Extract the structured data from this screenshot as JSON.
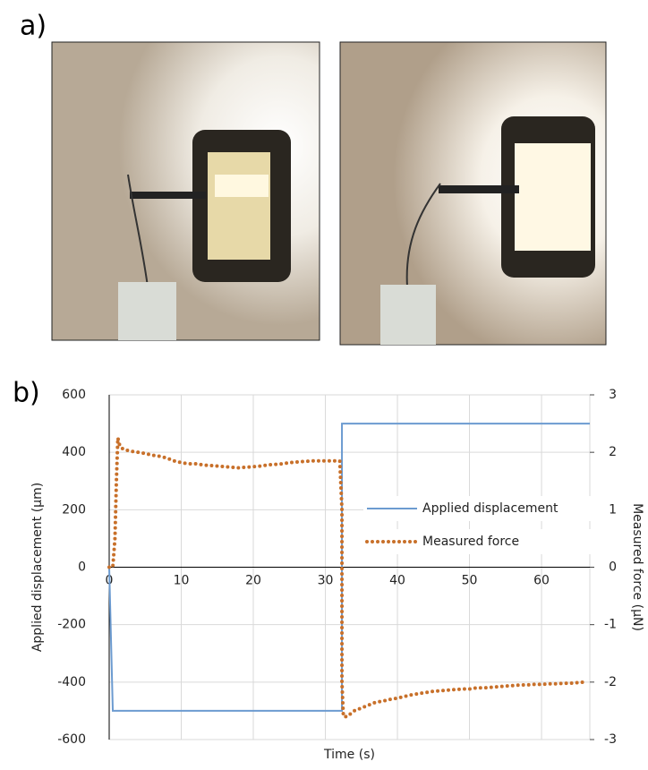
{
  "panel_labels": [
    "a)",
    "b)"
  ],
  "chart_data": {
    "type": "line",
    "x_label": "Time (s)",
    "y_label": "Applied displacement (µm)",
    "y2_label": "Measured force (µN)",
    "xlim": [
      0,
      66.7
    ],
    "xticks": [
      0,
      10,
      20,
      30,
      40,
      50,
      60
    ],
    "ylim": [
      -600,
      600
    ],
    "yticks": [
      -600,
      -400,
      -200,
      0,
      200,
      400,
      600
    ],
    "y2lim": [
      -3,
      3
    ],
    "y2ticks": [
      -3,
      -2,
      -1,
      0,
      1,
      2,
      3
    ],
    "grid": true,
    "legend": "center right",
    "series": [
      {
        "name": "Applied displacement",
        "color": "#6c9bd0",
        "style": "solid",
        "x": [
          0,
          0.5,
          32.3,
          32.3,
          66.7
        ],
        "values": [
          0,
          -500,
          -500,
          500,
          500
        ]
      },
      {
        "name": "Measured force",
        "color": "#c8702a",
        "style": "dotted",
        "axis": "y2",
        "x": [
          0,
          0.5,
          0.8,
          1.0,
          1.2,
          1.5,
          2,
          3,
          4,
          5,
          6,
          7,
          8,
          9,
          10,
          11,
          12,
          13,
          14,
          15,
          16,
          17,
          18,
          19,
          20,
          21,
          22,
          23,
          24,
          25,
          26,
          27,
          28,
          29,
          30,
          31,
          32,
          32.3,
          32.3,
          32.3,
          32.3,
          32.5,
          33,
          34,
          35,
          36,
          37,
          38,
          39,
          40,
          41,
          42,
          43,
          44,
          45,
          46,
          47,
          48,
          49,
          50,
          51,
          52,
          53,
          54,
          55,
          56,
          57,
          58,
          59,
          60,
          61,
          62,
          63,
          64,
          65,
          66
        ],
        "values": [
          0,
          0,
          0.5,
          1.5,
          2.25,
          2.1,
          2.05,
          2.02,
          2.0,
          1.98,
          1.95,
          1.93,
          1.9,
          1.85,
          1.82,
          1.8,
          1.8,
          1.78,
          1.77,
          1.76,
          1.75,
          1.74,
          1.73,
          1.74,
          1.75,
          1.76,
          1.78,
          1.79,
          1.8,
          1.82,
          1.83,
          1.84,
          1.85,
          1.85,
          1.85,
          1.85,
          1.85,
          1.0,
          0,
          -1.0,
          -2.0,
          -2.6,
          -2.6,
          -2.5,
          -2.45,
          -2.4,
          -2.35,
          -2.33,
          -2.3,
          -2.28,
          -2.25,
          -2.22,
          -2.2,
          -2.18,
          -2.16,
          -2.15,
          -2.14,
          -2.13,
          -2.12,
          -2.12,
          -2.1,
          -2.1,
          -2.09,
          -2.08,
          -2.07,
          -2.06,
          -2.05,
          -2.05,
          -2.04,
          -2.04,
          -2.03,
          -2.03,
          -2.02,
          -2.02,
          -2.01,
          -2.0
        ]
      }
    ]
  }
}
